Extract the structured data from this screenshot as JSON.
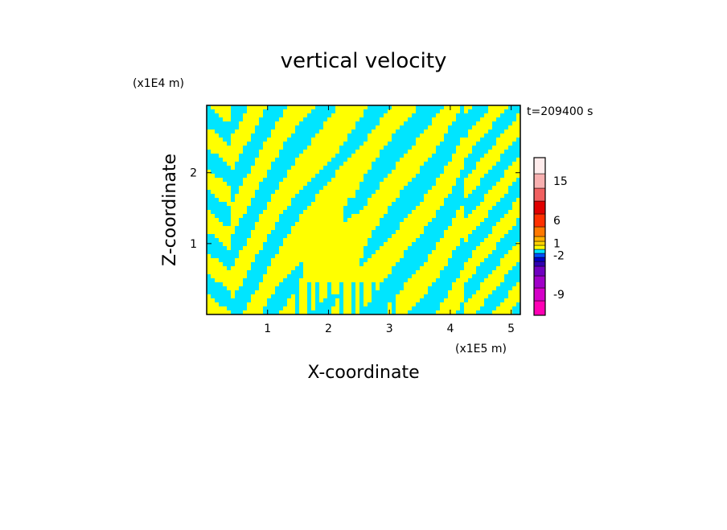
{
  "chart_data": {
    "type": "heatmap",
    "title": "vertical velocity",
    "xlabel": "X-coordinate",
    "ylabel": "Z-coordinate",
    "x_scale_label": "(x1E5 m)",
    "y_scale_label": "(x1E4 m)",
    "time_label": "t=209400 s",
    "xlim": [
      0,
      5.15
    ],
    "ylim": [
      0,
      2.95
    ],
    "x_ticks": [
      1,
      2,
      3,
      4,
      5
    ],
    "y_ticks": [
      1,
      2
    ],
    "field_colors": {
      "upward": "#ffff00",
      "downward": "#00e5ff"
    },
    "colorbar": {
      "labels": [
        "15",
        "6",
        "1",
        "-2",
        "-9"
      ],
      "levels": [
        {
          "value": -11,
          "color": "#ff00b4"
        },
        {
          "value": -9,
          "color": "#d400c8"
        },
        {
          "value": -7,
          "color": "#a000c8"
        },
        {
          "value": -5,
          "color": "#7000c0"
        },
        {
          "value": -4,
          "color": "#3000b0"
        },
        {
          "value": -3,
          "color": "#0000c8"
        },
        {
          "value": -2,
          "color": "#0050ff"
        },
        {
          "value": -1,
          "color": "#00e5ff"
        },
        {
          "value": 0,
          "color": "#ffff00"
        },
        {
          "value": 1,
          "color": "#ffd000"
        },
        {
          "value": 2,
          "color": "#ffb000"
        },
        {
          "value": 4,
          "color": "#ff7800"
        },
        {
          "value": 6,
          "color": "#ff3000"
        },
        {
          "value": 8,
          "color": "#e00000"
        },
        {
          "value": 11,
          "color": "#f06060"
        },
        {
          "value": 15,
          "color": "#f8b0b0"
        },
        {
          "value": 20,
          "color": "#ffecec"
        }
      ]
    }
  }
}
